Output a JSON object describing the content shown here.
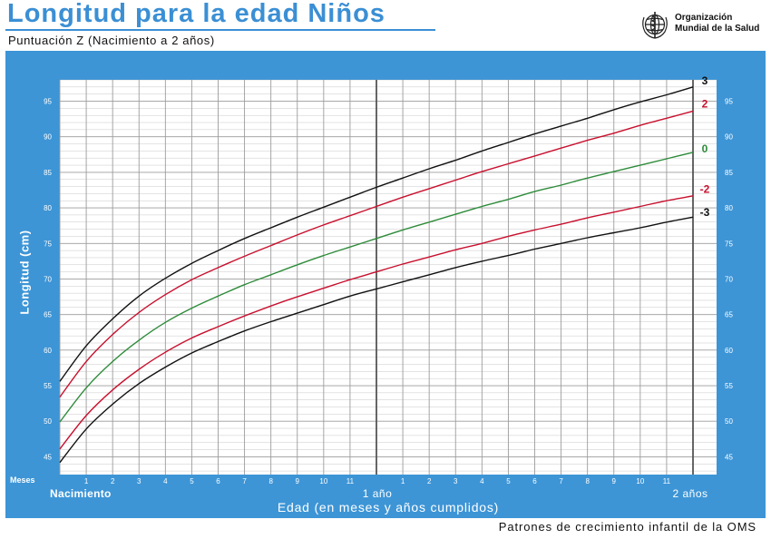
{
  "header": {
    "title": "Longitud para la edad Niños",
    "subtitle": "Puntuación Z (Nacimiento a 2 años)",
    "org_line1": "Organización",
    "org_line2": "Mundial de la Salud",
    "logo_icon": "who-emblem-icon"
  },
  "footer": {
    "text": "Patrones de crecimiento infantil de la OMS"
  },
  "colors": {
    "panel": "#3d95d6",
    "title": "#3b8fd4",
    "grid": "#9c9c9c",
    "z3": "#111111",
    "z2": "#c8102e",
    "z0": "#2e8b3a"
  },
  "chart_data": {
    "type": "line",
    "title": "Longitud para la edad Niños",
    "subtitle": "Puntuación Z (Nacimiento a 2 años)",
    "xlabel": "Edad (en meses y años cumplidos)",
    "ylabel": "Longitud (cm)",
    "xlim": [
      0,
      24
    ],
    "ylim": [
      42.5,
      98
    ],
    "x_axis_caption": "Meses",
    "x_tick_labels": [
      "1",
      "2",
      "3",
      "4",
      "5",
      "6",
      "7",
      "8",
      "9",
      "10",
      "11",
      "1",
      "2",
      "3",
      "4",
      "5",
      "6",
      "7",
      "8",
      "9",
      "10",
      "11"
    ],
    "x_milestones": [
      {
        "x": 0,
        "label": "Nacimiento"
      },
      {
        "x": 12,
        "label": "1 año"
      },
      {
        "x": 24,
        "label": "2 años"
      }
    ],
    "y_ticks": [
      45,
      50,
      55,
      60,
      65,
      70,
      75,
      80,
      85,
      90,
      95
    ],
    "grid": true,
    "x": [
      0,
      1,
      2,
      3,
      4,
      5,
      6,
      7,
      8,
      9,
      10,
      11,
      12,
      13,
      14,
      15,
      16,
      17,
      18,
      19,
      20,
      21,
      22,
      23,
      24
    ],
    "series": [
      {
        "name": "3",
        "color": "#111111",
        "values": [
          55.6,
          60.6,
          64.4,
          67.6,
          70.1,
          72.2,
          74.0,
          75.7,
          77.2,
          78.7,
          80.1,
          81.5,
          82.9,
          84.2,
          85.5,
          86.7,
          88.0,
          89.2,
          90.4,
          91.5,
          92.6,
          93.8,
          94.9,
          95.9,
          97.0
        ]
      },
      {
        "name": "2",
        "color": "#c8102e",
        "values": [
          53.4,
          58.4,
          62.2,
          65.3,
          67.8,
          69.9,
          71.6,
          73.2,
          74.7,
          76.2,
          77.6,
          78.9,
          80.2,
          81.5,
          82.7,
          83.9,
          85.1,
          86.2,
          87.3,
          88.4,
          89.5,
          90.5,
          91.6,
          92.6,
          93.6
        ]
      },
      {
        "name": "0",
        "color": "#2e8b3a",
        "values": [
          49.9,
          54.7,
          58.4,
          61.4,
          63.9,
          65.9,
          67.6,
          69.2,
          70.6,
          72.0,
          73.3,
          74.5,
          75.7,
          76.9,
          78.0,
          79.1,
          80.2,
          81.2,
          82.3,
          83.2,
          84.2,
          85.1,
          86.0,
          86.9,
          87.8
        ]
      },
      {
        "name": "-2",
        "color": "#c8102e",
        "values": [
          46.1,
          50.8,
          54.4,
          57.3,
          59.7,
          61.7,
          63.3,
          64.8,
          66.2,
          67.5,
          68.7,
          69.9,
          71.0,
          72.1,
          73.1,
          74.1,
          75.0,
          76.0,
          76.9,
          77.7,
          78.6,
          79.4,
          80.2,
          81.0,
          81.7
        ]
      },
      {
        "name": "-3",
        "color": "#111111",
        "values": [
          44.2,
          48.9,
          52.4,
          55.3,
          57.6,
          59.6,
          61.2,
          62.7,
          64.0,
          65.2,
          66.4,
          67.6,
          68.6,
          69.6,
          70.6,
          71.6,
          72.5,
          73.3,
          74.2,
          75.0,
          75.8,
          76.5,
          77.2,
          78.0,
          78.7
        ]
      }
    ]
  }
}
